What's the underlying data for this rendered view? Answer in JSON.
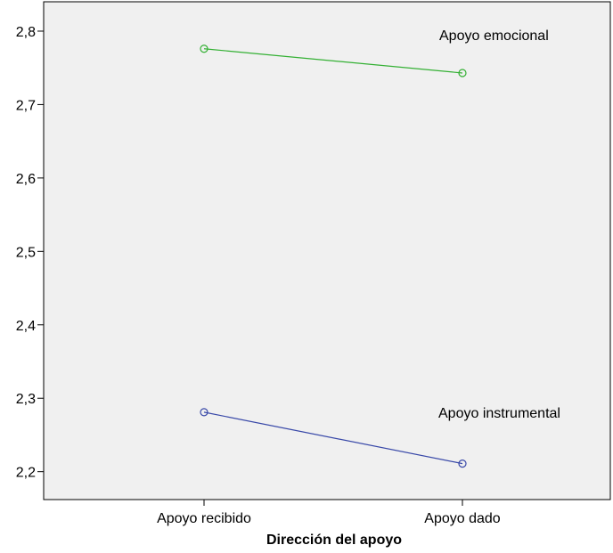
{
  "chart_data": {
    "type": "line",
    "title": "",
    "xlabel": "Dirección del apoyo",
    "ylabel": "",
    "categories": [
      "Apoyo recibido",
      "Apoyo dado"
    ],
    "series": [
      {
        "name": "Apoyo emocional",
        "values": [
          2.776,
          2.743
        ],
        "color": "#33b033"
      },
      {
        "name": "Apoyo instrumental",
        "values": [
          2.281,
          2.211
        ],
        "color": "#3848a8"
      }
    ],
    "yticks": [
      "2,2",
      "2,3",
      "2,4",
      "2,5",
      "2,6",
      "2,7",
      "2,8"
    ],
    "ytick_values": [
      2.2,
      2.3,
      2.4,
      2.5,
      2.6,
      2.7,
      2.8
    ],
    "ylim": [
      2.162,
      2.84
    ],
    "grid": false,
    "legend": "none",
    "plot_background": "#f0f0f0",
    "marker": "open-circle"
  }
}
